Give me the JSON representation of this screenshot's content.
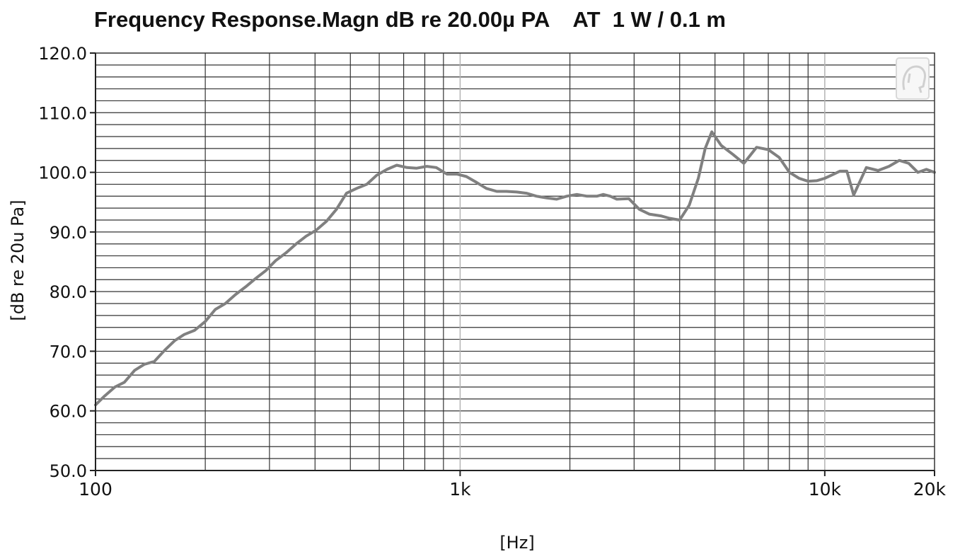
{
  "chart_data": {
    "type": "line",
    "title": "Frequency Response.Magn dB re 20.00µ PA    AT  1 W / 0.1 m",
    "xlabel": "[Hz]",
    "ylabel": "[dB re 20u Pa]",
    "x_scale": "log",
    "xlim": [
      100,
      20000
    ],
    "ylim": [
      50,
      120
    ],
    "y_ticks": [
      50,
      60,
      70,
      80,
      90,
      100,
      110,
      120
    ],
    "y_tick_labels": [
      "50.0",
      "60.0",
      "70.0",
      "80.0",
      "90.0",
      "100.0",
      "110.0",
      "120.0"
    ],
    "x_ticks": [
      100,
      1000,
      10000,
      20000
    ],
    "x_tick_labels": [
      "100",
      "1k",
      "10k",
      "20k"
    ],
    "grid": true,
    "colors": {
      "line": "#808080",
      "grid": "#333333",
      "major_grid": "#b4b4b4"
    },
    "series": [
      {
        "x": [
          100,
          106,
          113,
          120,
          128,
          136,
          145,
          155,
          165,
          175,
          187,
          200,
          213,
          227,
          242,
          258,
          275,
          293,
          312,
          333,
          355,
          378,
          403,
          430,
          458,
          488,
          520,
          555,
          590,
          630,
          670,
          715,
          760,
          810,
          860,
          920,
          980,
          1040,
          1110,
          1180,
          1260,
          1340,
          1430,
          1520,
          1620,
          1730,
          1840,
          1960,
          2090,
          2230,
          2370,
          2470,
          2580,
          2690,
          2900,
          3100,
          3300,
          3550,
          3750,
          4000,
          4250,
          4500,
          4700,
          4900,
          5200,
          5600,
          6000,
          6500,
          7000,
          7500,
          8000,
          8500,
          9000,
          9500,
          10000,
          10500,
          11000,
          11500,
          12000,
          13000,
          14000,
          15000,
          16000,
          17000,
          18000,
          19000,
          20000
        ],
        "y": [
          61.0,
          62.5,
          64.0,
          64.8,
          66.8,
          67.8,
          68.3,
          70.2,
          71.8,
          72.8,
          73.5,
          75.0,
          77.0,
          78.0,
          79.5,
          80.8,
          82.2,
          83.5,
          85.2,
          86.5,
          88.0,
          89.3,
          90.3,
          91.8,
          93.8,
          96.5,
          97.3,
          98.0,
          99.5,
          100.5,
          101.2,
          100.8,
          100.7,
          101.0,
          100.8,
          99.7,
          99.7,
          99.3,
          98.3,
          97.3,
          96.8,
          96.8,
          96.7,
          96.5,
          96.0,
          95.7,
          95.5,
          96.0,
          96.3,
          96.0,
          96.0,
          96.3,
          96.0,
          95.5,
          95.6,
          93.8,
          93.0,
          92.7,
          92.3,
          92.0,
          94.5,
          99.0,
          104.0,
          106.8,
          104.5,
          103.0,
          101.5,
          104.2,
          103.8,
          102.5,
          100.0,
          99.0,
          98.5,
          98.6,
          99.0,
          99.6,
          100.2,
          100.2,
          96.2,
          100.8,
          100.3,
          101.0,
          102.0,
          101.5,
          100.0,
          100.5,
          100.0
        ]
      }
    ]
  }
}
